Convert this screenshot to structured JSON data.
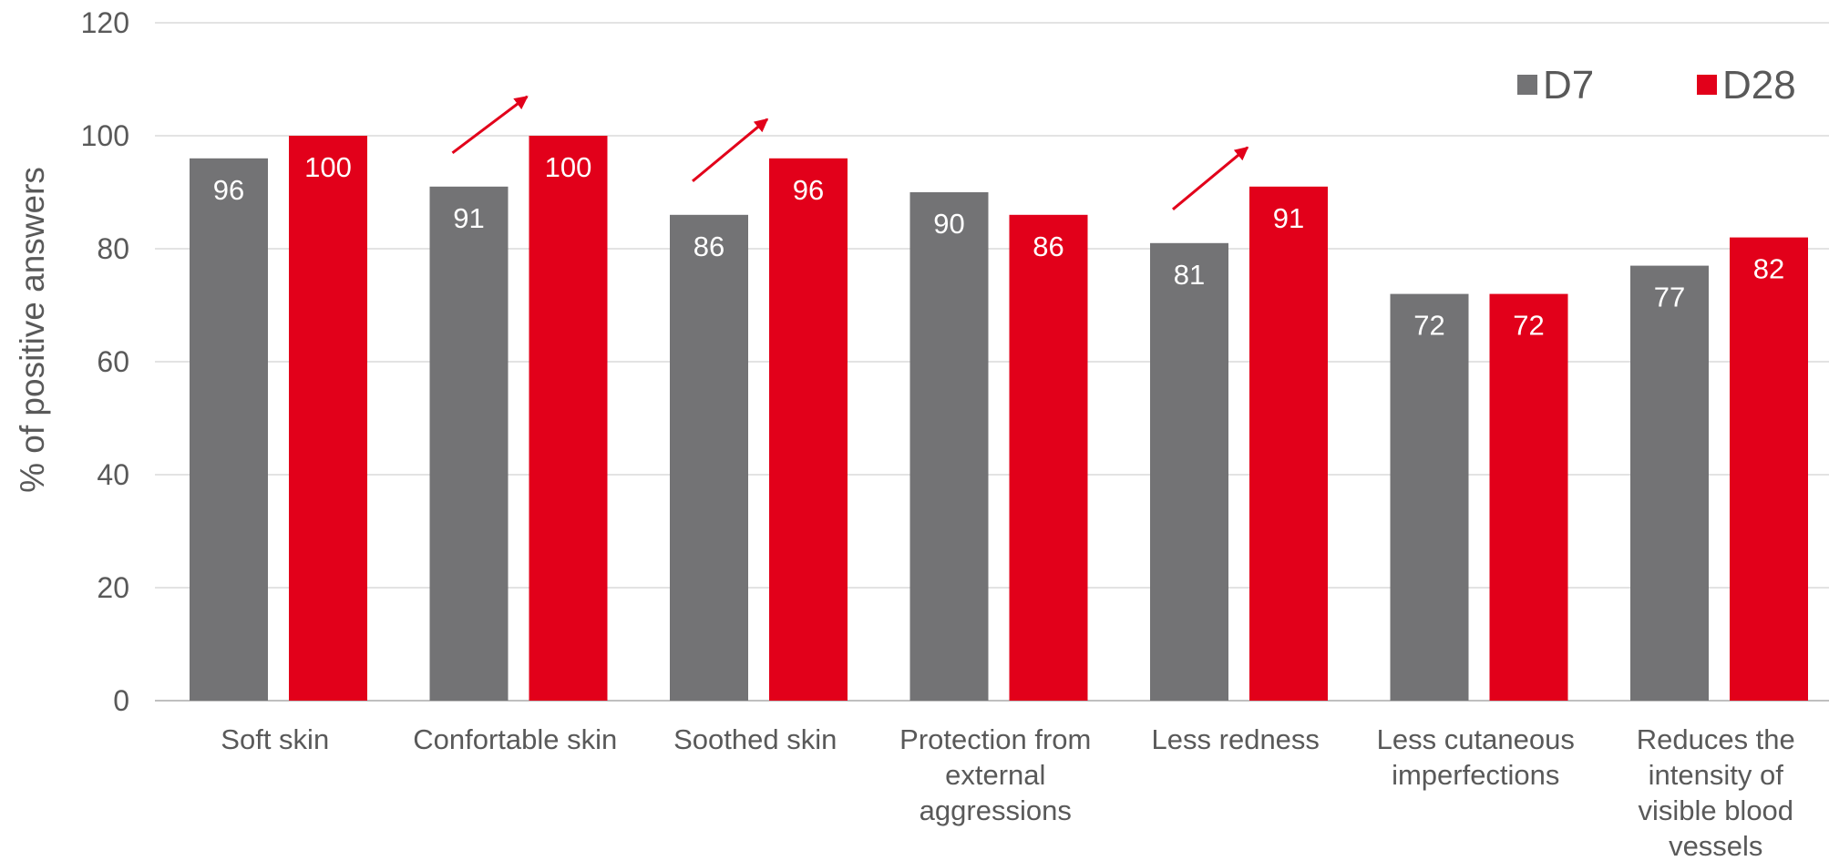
{
  "chart_data": {
    "type": "bar",
    "categories": [
      [
        "Soft skin"
      ],
      [
        "Confortable skin"
      ],
      [
        "Soothed skin"
      ],
      [
        "Protection from",
        "external",
        "aggressions"
      ],
      [
        "Less redness"
      ],
      [
        "Less cutaneous",
        "imperfections"
      ],
      [
        "Reduces the",
        "intensity of",
        "visible blood",
        "vessels"
      ]
    ],
    "series": [
      {
        "name": "D7",
        "color": "#737375",
        "values": [
          96,
          91,
          86,
          90,
          81,
          72,
          77
        ]
      },
      {
        "name": "D28",
        "color": "#e2001a",
        "values": [
          100,
          100,
          96,
          86,
          91,
          72,
          82
        ]
      }
    ],
    "ylabel": "% of positive answers",
    "ylim": [
      0,
      120
    ],
    "yticks": [
      0,
      20,
      40,
      60,
      80,
      100,
      120
    ],
    "grid": true,
    "legend": "top-right",
    "trend_arrows": {
      "color": "#e2001a",
      "categories": [
        "Confortable skin",
        "Soothed skin",
        "Less redness"
      ]
    }
  }
}
